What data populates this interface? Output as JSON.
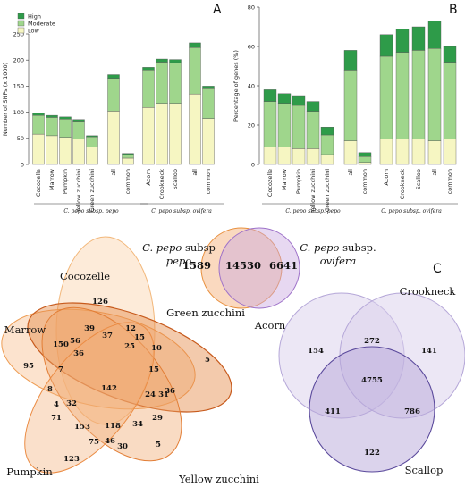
{
  "panels": {
    "a": "A",
    "b": "B",
    "c": "C"
  },
  "colors": {
    "high": "#2e9b49",
    "moderate": "#9fd68c",
    "low": "#f6f6c2",
    "edge": "#555555"
  },
  "legend": [
    "High",
    "Moderate",
    "Low"
  ],
  "group_labels": {
    "pepo": "C. pepo subsp. pepo",
    "ovifera": "C. pepo subsp. ovifera"
  },
  "chart_data": [
    {
      "type": "bar",
      "stacked": true,
      "categories": [
        "Cocozelle",
        "Marrow",
        "Pumpkin",
        "Yellow zucchini",
        "Green zucchini",
        "all",
        "common",
        "Acorn",
        "Crookneck",
        "Scallop",
        "all",
        "common"
      ],
      "ylabel": "Number of SNPs (x 1000)",
      "ylim": [
        0,
        250
      ],
      "yticks": [
        0,
        50,
        100,
        150,
        200,
        250
      ],
      "series": [
        {
          "name": "Low",
          "values": [
            58,
            55,
            52,
            49,
            33,
            102,
            12,
            109,
            117,
            117,
            135,
            88
          ]
        },
        {
          "name": "Moderate",
          "values": [
            36,
            35,
            35,
            34,
            20,
            63,
            7,
            72,
            79,
            78,
            89,
            57
          ]
        },
        {
          "name": "High",
          "values": [
            4,
            4,
            4,
            3,
            2,
            7,
            2,
            5,
            6,
            6,
            9,
            5
          ]
        }
      ]
    },
    {
      "type": "bar",
      "stacked": true,
      "categories": [
        "Cocozelle",
        "Marrow",
        "Pumpkin",
        "Yellow zucchini",
        "Green zucchini",
        "all",
        "common",
        "Acorn",
        "Crookneck",
        "Scallop",
        "all",
        "common"
      ],
      "ylabel": "Percentage of genes (%)",
      "ylim": [
        0,
        80
      ],
      "yticks": [
        0,
        20,
        40,
        60,
        80
      ],
      "series": [
        {
          "name": "Low",
          "values": [
            9,
            9,
            8,
            8,
            5,
            12,
            1,
            13,
            13,
            13,
            12,
            13
          ]
        },
        {
          "name": "Moderate",
          "values": [
            23,
            22,
            22,
            19,
            10,
            36,
            3,
            42,
            44,
            45,
            47,
            39
          ]
        },
        {
          "name": "High",
          "values": [
            6,
            5,
            5,
            5,
            4,
            10,
            2,
            11,
            12,
            12,
            14,
            8
          ]
        }
      ]
    }
  ],
  "venn_top": {
    "left_label": "C. pepo",
    "left_label2": "subsp",
    "left_label3": "pepo",
    "right_label": "C. pepo",
    "right_label2": "subsp.",
    "right_label3": "ovifera",
    "left_only": "1589",
    "both": "14530",
    "right_only": "6641"
  },
  "venn_five": {
    "labels": {
      "cocozelle": "Cocozelle",
      "marrow": "Marrow",
      "green": "Green zucchini",
      "yellow": "Yellow zucchini",
      "pumpkin": "Pumpkin"
    },
    "values": [
      "126",
      "95",
      "5",
      "5",
      "123",
      "39",
      "37",
      "12",
      "15",
      "150",
      "56",
      "36",
      "25",
      "10",
      "7",
      "15",
      "142",
      "8",
      "24",
      "31",
      "36",
      "4",
      "32",
      "29",
      "71",
      "118",
      "153",
      "34",
      "75",
      "46",
      "30"
    ]
  },
  "venn_three": {
    "labels": {
      "acorn": "Acorn",
      "crookneck": "Crookneck",
      "scallop": "Scallop"
    },
    "values": {
      "acorn_only": "154",
      "ac": "272",
      "crook_only": "141",
      "all": "4755",
      "as": "411",
      "cs": "786",
      "scallop_only": "122"
    }
  }
}
